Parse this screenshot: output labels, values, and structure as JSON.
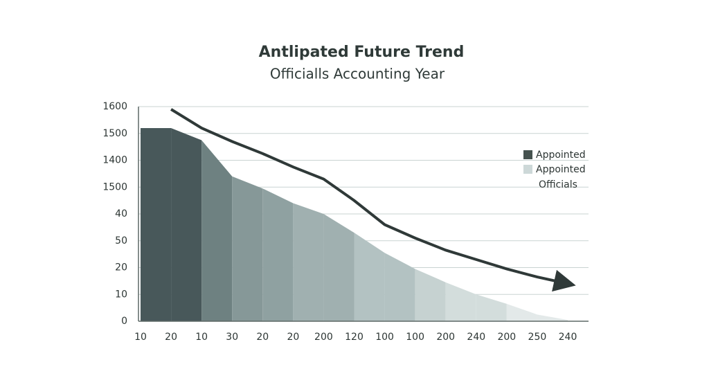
{
  "chart_data": {
    "type": "area-line",
    "title": "Antlipated Future Trend",
    "subtitle": "Officialls Accounting Year",
    "categories": [
      "10",
      "20",
      "10",
      "30",
      "20",
      "20",
      "200",
      "120",
      "100",
      "100",
      "200",
      "240",
      "200",
      "250",
      "240"
    ],
    "ylim": [
      0,
      8
    ],
    "yticks": [
      {
        "value": 0,
        "label": "0"
      },
      {
        "value": 1,
        "label": "10"
      },
      {
        "value": 2,
        "label": "20"
      },
      {
        "value": 3,
        "label": "50"
      },
      {
        "value": 4,
        "label": "40"
      },
      {
        "value": 5,
        "label": "1500"
      },
      {
        "value": 6,
        "label": "1400"
      },
      {
        "value": 7,
        "label": "1500"
      },
      {
        "value": 8,
        "label": "1600"
      }
    ],
    "grid": true,
    "series": [
      {
        "name": "Appointed",
        "kind": "area",
        "color": "#45524f",
        "colors": [
          "#48585a",
          "#48585a",
          "#6e8181",
          "#869898",
          "#8fa1a1",
          "#a0b0b0",
          "#a0b0b0",
          "#b3c2c2",
          "#b3c2c2",
          "#c6d2d1",
          "#d3dddc",
          "#d3dddc",
          "#e3e9e9",
          "#e3e9e9"
        ],
        "values": [
          7.2,
          7.2,
          6.75,
          5.4,
          4.95,
          4.4,
          4.0,
          3.3,
          2.55,
          1.95,
          1.45,
          1.0,
          0.65,
          0.25,
          0.05
        ]
      },
      {
        "name": "Appointed Officials",
        "kind": "line",
        "color": "#cdd8d8",
        "line_color": "#2f3938",
        "values": [
          null,
          7.9,
          7.2,
          6.7,
          6.25,
          5.75,
          5.3,
          4.5,
          3.6,
          3.1,
          2.65,
          2.3,
          1.95,
          1.65,
          1.4
        ]
      }
    ],
    "legend": "right"
  }
}
